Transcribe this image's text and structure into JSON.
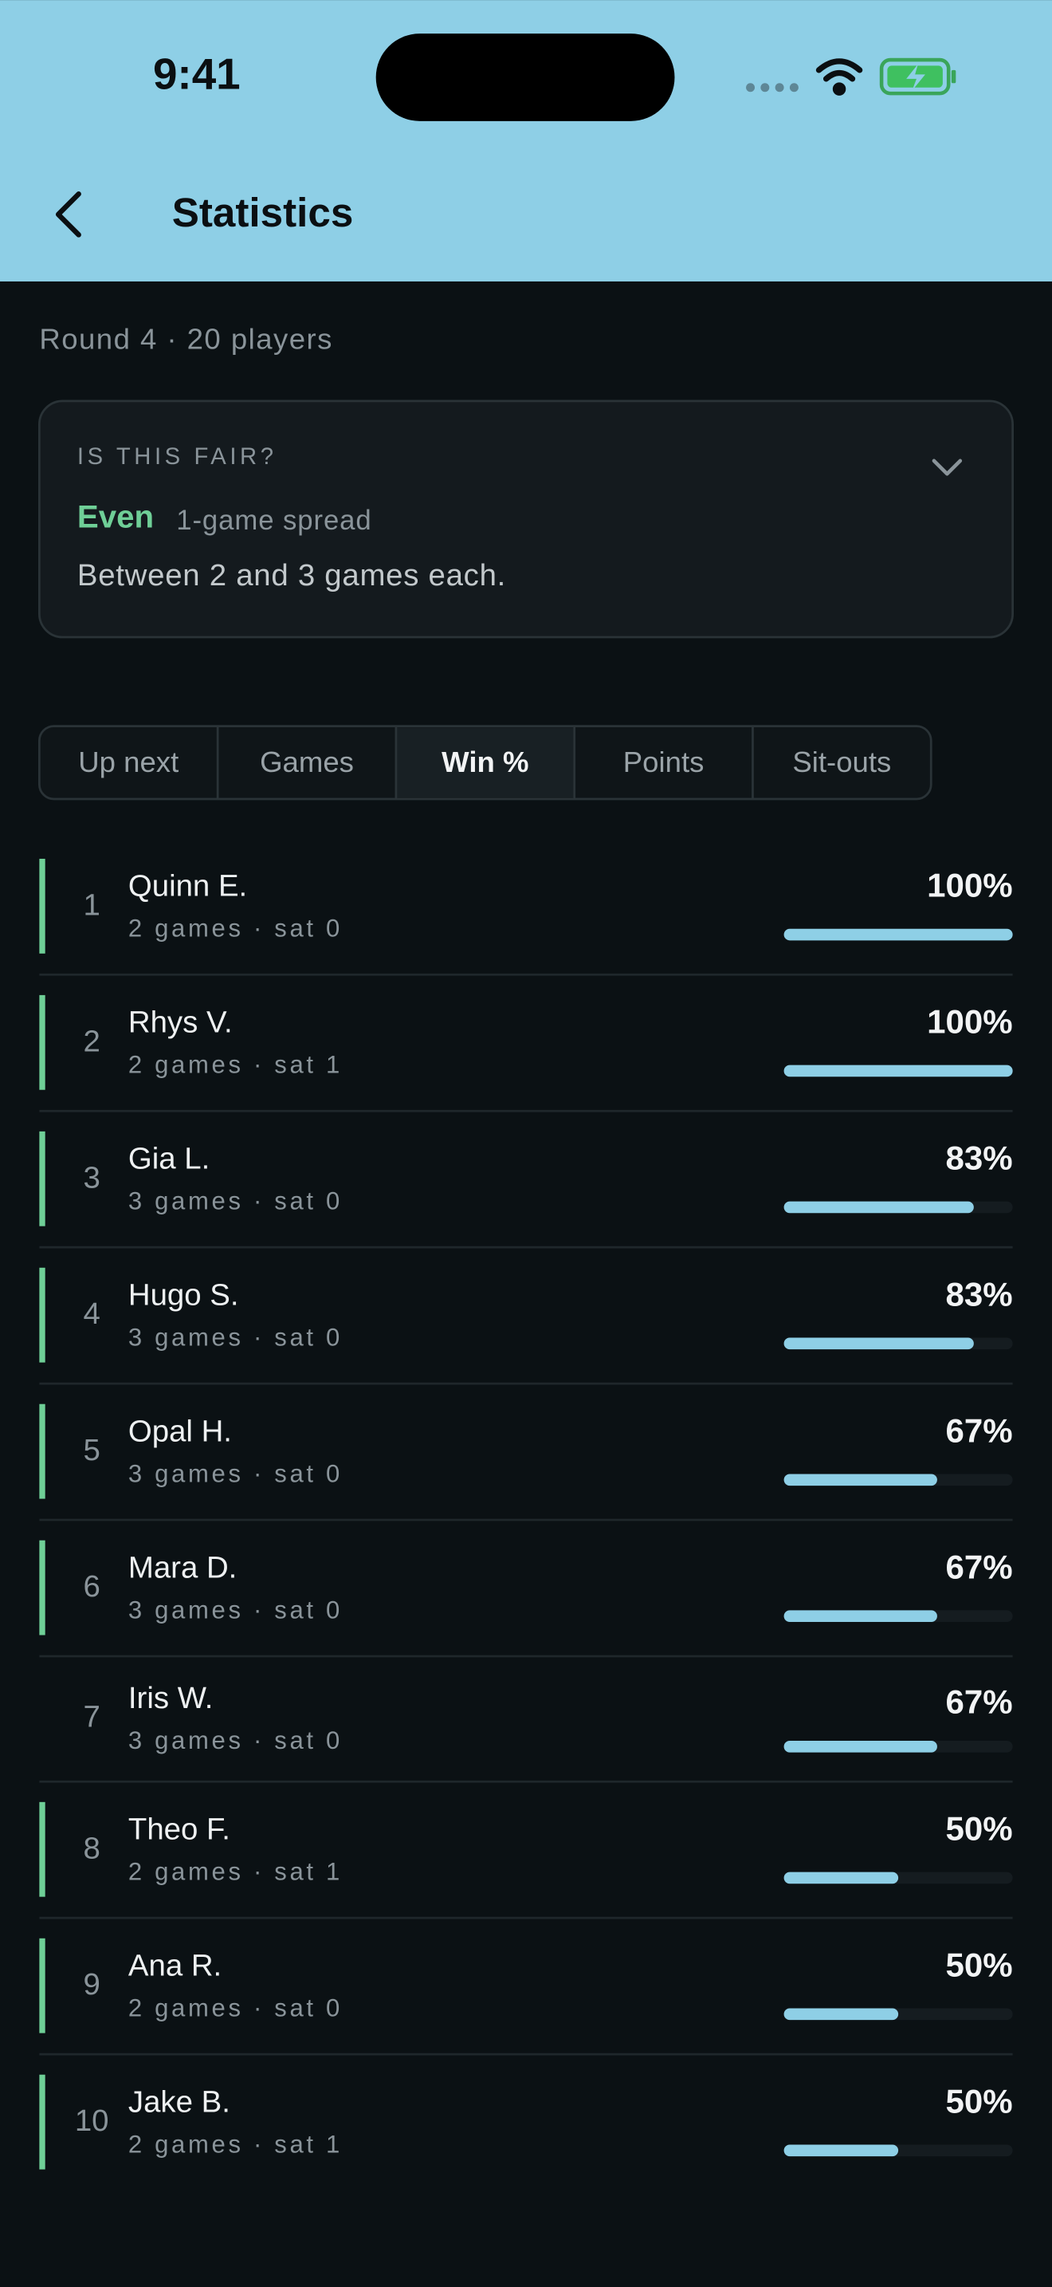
{
  "status_bar": {
    "time": "9:41"
  },
  "header": {
    "title": "Statistics"
  },
  "subtitle": "Round 4 · 20 players",
  "fairness": {
    "label": "IS THIS FAIR?",
    "verdict": "Even",
    "spread": "1-game spread",
    "description": "Between 2 and 3 games each."
  },
  "tabs": [
    "Up next",
    "Games",
    "Win %",
    "Points",
    "Sit-outs"
  ],
  "active_tab": 2,
  "rows": [
    {
      "rank": "1",
      "name": "Quinn E.",
      "meta": "2 games · sat 0",
      "win_pct": 100,
      "win_pct_label": "100%",
      "marker": true
    },
    {
      "rank": "2",
      "name": "Rhys V.",
      "meta": "2 games · sat 1",
      "win_pct": 100,
      "win_pct_label": "100%",
      "marker": true
    },
    {
      "rank": "3",
      "name": "Gia L.",
      "meta": "3 games · sat 0",
      "win_pct": 83,
      "win_pct_label": "83%",
      "marker": true
    },
    {
      "rank": "4",
      "name": "Hugo S.",
      "meta": "3 games · sat 0",
      "win_pct": 83,
      "win_pct_label": "83%",
      "marker": true
    },
    {
      "rank": "5",
      "name": "Opal H.",
      "meta": "3 games · sat 0",
      "win_pct": 67,
      "win_pct_label": "67%",
      "marker": true
    },
    {
      "rank": "6",
      "name": "Mara D.",
      "meta": "3 games · sat 0",
      "win_pct": 67,
      "win_pct_label": "67%",
      "marker": true
    },
    {
      "rank": "7",
      "name": "Iris W.",
      "meta": "3 games · sat 0",
      "win_pct": 67,
      "win_pct_label": "67%",
      "marker": false
    },
    {
      "rank": "8",
      "name": "Theo F.",
      "meta": "2 games · sat 1",
      "win_pct": 50,
      "win_pct_label": "50%",
      "marker": true
    },
    {
      "rank": "9",
      "name": "Ana R.",
      "meta": "2 games · sat 0",
      "win_pct": 50,
      "win_pct_label": "50%",
      "marker": true
    },
    {
      "rank": "10",
      "name": "Jake B.",
      "meta": "2 games · sat 1",
      "win_pct": 50,
      "win_pct_label": "50%",
      "marker": true
    }
  ]
}
